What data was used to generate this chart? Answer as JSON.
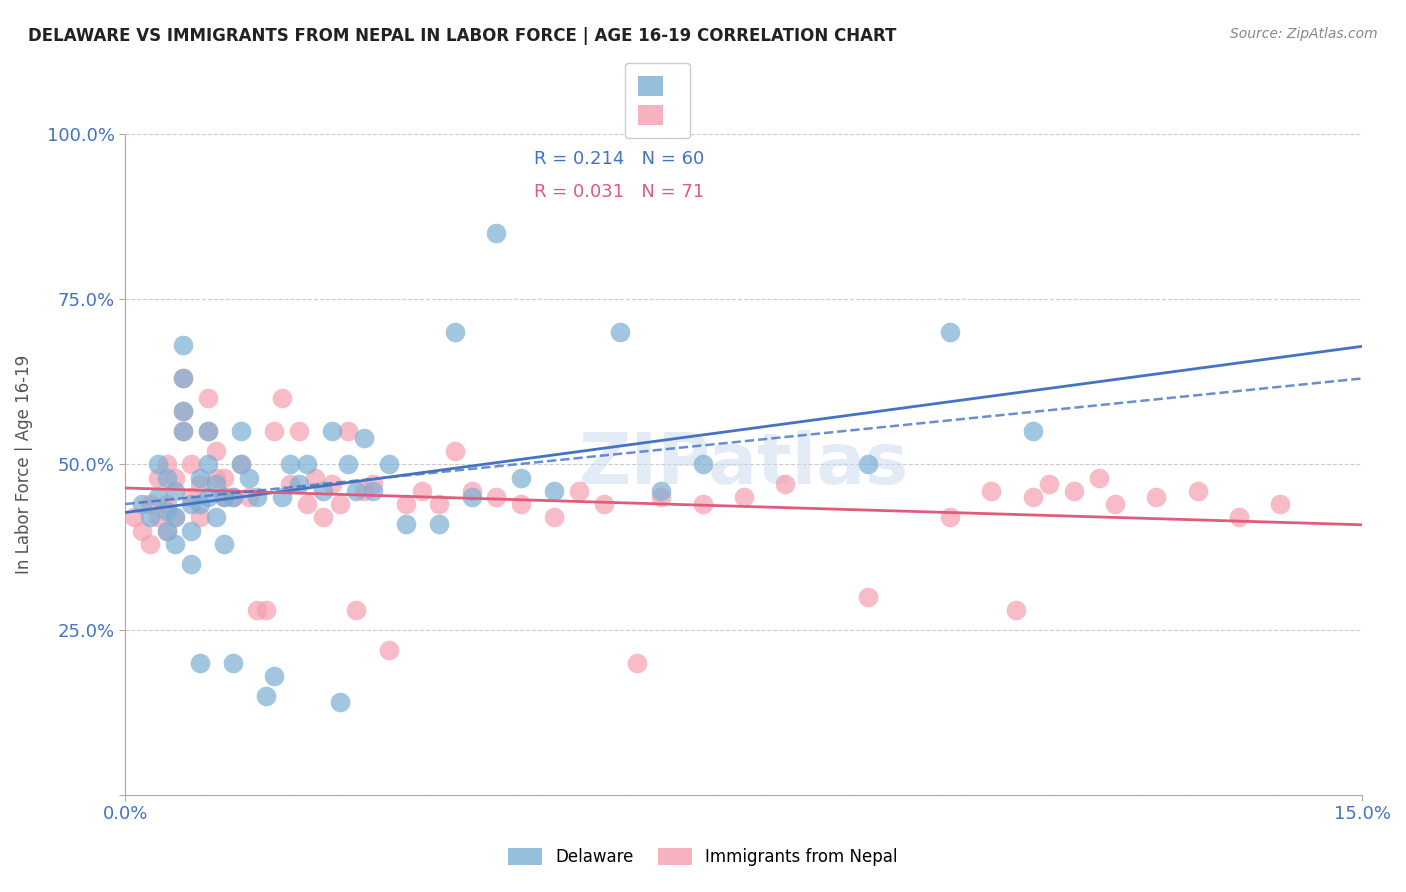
{
  "title": "DELAWARE VS IMMIGRANTS FROM NEPAL IN LABOR FORCE | AGE 16-19 CORRELATION CHART",
  "source": "Source: ZipAtlas.com",
  "ylabel": "In Labor Force | Age 16-19",
  "xlabel": "",
  "xlim": [
    0.0,
    0.15
  ],
  "ylim": [
    0.0,
    1.0
  ],
  "xtick_labels": [
    "0.0%",
    "15.0%"
  ],
  "ytick_positions": [
    0.0,
    0.25,
    0.5,
    0.75,
    1.0
  ],
  "ytick_labels": [
    "",
    "25.0%",
    "50.0%",
    "75.0%",
    "100.0%"
  ],
  "grid_color": "#cccccc",
  "background_color": "#ffffff",
  "watermark": "ZIPatlas",
  "delaware_color": "#7bafd4",
  "nepal_color": "#f4a0b0",
  "delaware_R": 0.214,
  "delaware_N": 60,
  "nepal_R": 0.031,
  "nepal_N": 71,
  "delaware_line_color": "#4472c4",
  "nepal_line_color": "#e05c7a",
  "delaware_trend_dashed": true,
  "legend_R_color_delaware": "#4472c4",
  "legend_R_color_nepal": "#e05c7a",
  "legend_N_color": "#4472c4",
  "delaware_x": [
    0.002,
    0.003,
    0.004,
    0.004,
    0.005,
    0.005,
    0.005,
    0.006,
    0.006,
    0.006,
    0.007,
    0.007,
    0.007,
    0.007,
    0.008,
    0.008,
    0.008,
    0.009,
    0.009,
    0.009,
    0.01,
    0.01,
    0.01,
    0.011,
    0.011,
    0.012,
    0.012,
    0.013,
    0.013,
    0.014,
    0.014,
    0.015,
    0.016,
    0.017,
    0.018,
    0.019,
    0.02,
    0.021,
    0.022,
    0.024,
    0.025,
    0.026,
    0.027,
    0.028,
    0.029,
    0.03,
    0.032,
    0.034,
    0.038,
    0.04,
    0.042,
    0.045,
    0.048,
    0.052,
    0.06,
    0.065,
    0.07,
    0.09,
    0.1,
    0.11
  ],
  "delaware_y": [
    0.44,
    0.42,
    0.45,
    0.5,
    0.4,
    0.43,
    0.48,
    0.38,
    0.42,
    0.46,
    0.55,
    0.58,
    0.63,
    0.68,
    0.35,
    0.4,
    0.44,
    0.2,
    0.44,
    0.48,
    0.45,
    0.5,
    0.55,
    0.42,
    0.47,
    0.38,
    0.45,
    0.2,
    0.45,
    0.5,
    0.55,
    0.48,
    0.45,
    0.15,
    0.18,
    0.45,
    0.5,
    0.47,
    0.5,
    0.46,
    0.55,
    0.14,
    0.5,
    0.46,
    0.54,
    0.46,
    0.5,
    0.41,
    0.41,
    0.7,
    0.45,
    0.85,
    0.48,
    0.46,
    0.7,
    0.46,
    0.5,
    0.5,
    0.7,
    0.55
  ],
  "nepal_x": [
    0.001,
    0.002,
    0.003,
    0.003,
    0.004,
    0.004,
    0.005,
    0.005,
    0.005,
    0.006,
    0.006,
    0.007,
    0.007,
    0.007,
    0.008,
    0.008,
    0.009,
    0.009,
    0.01,
    0.01,
    0.011,
    0.011,
    0.012,
    0.012,
    0.013,
    0.014,
    0.015,
    0.016,
    0.017,
    0.018,
    0.019,
    0.02,
    0.021,
    0.022,
    0.023,
    0.024,
    0.025,
    0.026,
    0.027,
    0.028,
    0.029,
    0.03,
    0.032,
    0.034,
    0.036,
    0.038,
    0.04,
    0.042,
    0.045,
    0.048,
    0.052,
    0.055,
    0.058,
    0.062,
    0.065,
    0.07,
    0.075,
    0.08,
    0.09,
    0.1,
    0.105,
    0.108,
    0.11,
    0.112,
    0.115,
    0.118,
    0.12,
    0.125,
    0.13,
    0.135,
    0.14
  ],
  "nepal_y": [
    0.42,
    0.4,
    0.38,
    0.44,
    0.42,
    0.48,
    0.4,
    0.44,
    0.5,
    0.42,
    0.48,
    0.55,
    0.58,
    0.63,
    0.45,
    0.5,
    0.42,
    0.47,
    0.55,
    0.6,
    0.48,
    0.52,
    0.45,
    0.48,
    0.45,
    0.5,
    0.45,
    0.28,
    0.28,
    0.55,
    0.6,
    0.47,
    0.55,
    0.44,
    0.48,
    0.42,
    0.47,
    0.44,
    0.55,
    0.28,
    0.46,
    0.47,
    0.22,
    0.44,
    0.46,
    0.44,
    0.52,
    0.46,
    0.45,
    0.44,
    0.42,
    0.46,
    0.44,
    0.2,
    0.45,
    0.44,
    0.45,
    0.47,
    0.3,
    0.42,
    0.46,
    0.28,
    0.45,
    0.47,
    0.46,
    0.48,
    0.44,
    0.45,
    0.46,
    0.42,
    0.44
  ]
}
